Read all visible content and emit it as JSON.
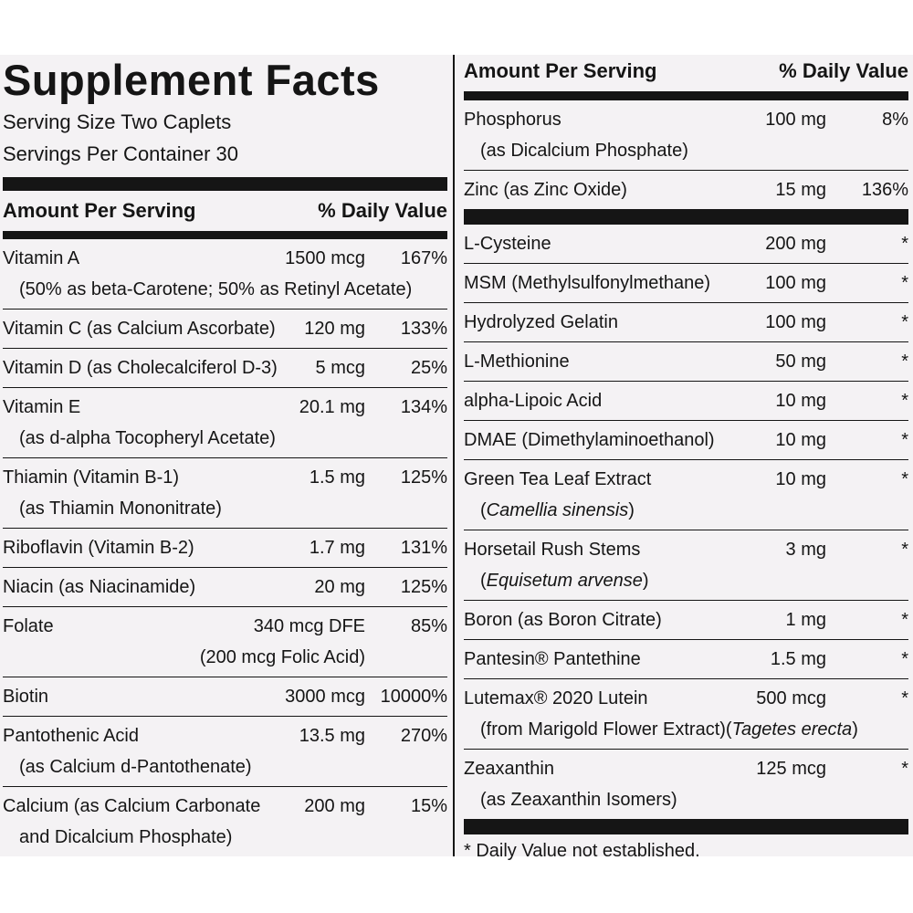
{
  "left": {
    "title": "Supplement Facts",
    "serving_size": "Serving Size Two Caplets",
    "servings_per_container": "Servings Per Container 30",
    "header": {
      "amount": "Amount Per Serving",
      "dv": "% Daily Value"
    },
    "rows": [
      {
        "name": "Vitamin A",
        "amount": "1500 mcg",
        "dv": "167%",
        "sub": [
          {
            "text": "(50% as beta-Carotene; 50% as Retinyl Acetate)"
          }
        ]
      },
      {
        "name": "Vitamin C (as Calcium Ascorbate)",
        "amount": "120 mg",
        "dv": "133%"
      },
      {
        "name": "Vitamin D (as Cholecalciferol D-3)",
        "amount": "5 mcg",
        "dv": "25%"
      },
      {
        "name": "Vitamin E",
        "amount": "20.1 mg",
        "dv": "134%",
        "sub": [
          {
            "text": "(as d-alpha Tocopheryl Acetate)"
          }
        ]
      },
      {
        "name": "Thiamin (Vitamin B-1)",
        "amount": "1.5 mg",
        "dv": "125%",
        "sub": [
          {
            "text": "(as Thiamin Mononitrate)"
          }
        ]
      },
      {
        "name": "Riboflavin (Vitamin B-2)",
        "amount": "1.7 mg",
        "dv": "131%"
      },
      {
        "name": "Niacin (as Niacinamide)",
        "amount": "20 mg",
        "dv": "125%"
      },
      {
        "name": "Folate",
        "amount": "340 mcg DFE",
        "dv": "85%",
        "sub": [
          {
            "text": "(200 mcg Folic Acid)"
          }
        ],
        "sub_align": "right"
      },
      {
        "name": "Biotin",
        "amount": "3000 mcg",
        "dv": "10000%"
      },
      {
        "name": "Pantothenic Acid",
        "amount": "13.5 mg",
        "dv": "270%",
        "sub": [
          {
            "text": "(as Calcium d-Pantothenate)"
          }
        ]
      },
      {
        "name": "Calcium (as Calcium Carbonate",
        "amount": "200 mg",
        "dv": "15%",
        "sub": [
          {
            "text": "and Dicalcium Phosphate)"
          }
        ]
      }
    ]
  },
  "right": {
    "header": {
      "amount": "Amount Per Serving",
      "dv": "% Daily Value"
    },
    "vitamin_rows": [
      {
        "name": "Phosphorus",
        "amount": "100 mg",
        "dv": "8%",
        "sub": [
          {
            "text": "(as Dicalcium Phosphate)"
          }
        ]
      },
      {
        "name": "Zinc (as Zinc Oxide)",
        "amount": "15 mg",
        "dv": "136%"
      }
    ],
    "other_rows": [
      {
        "name": "L-Cysteine",
        "amount": "200 mg",
        "dv": "*"
      },
      {
        "name": "MSM (Methylsulfonylmethane)",
        "amount": "100 mg",
        "dv": "*"
      },
      {
        "name": "Hydrolyzed Gelatin",
        "amount": "100 mg",
        "dv": "*"
      },
      {
        "name": "L-Methionine",
        "amount": "50 mg",
        "dv": "*"
      },
      {
        "name": "alpha-Lipoic Acid",
        "amount": "10 mg",
        "dv": "*"
      },
      {
        "name": "DMAE (Dimethylaminoethanol)",
        "amount": "10 mg",
        "dv": "*"
      },
      {
        "name": "Green Tea Leaf Extract",
        "amount": "10 mg",
        "dv": "*",
        "sub": [
          {
            "text": "("
          },
          {
            "text": "Camellia sinensis",
            "italic": true
          },
          {
            "text": ")"
          }
        ]
      },
      {
        "name": "Horsetail Rush Stems",
        "amount": "3 mg",
        "dv": "*",
        "sub": [
          {
            "text": "("
          },
          {
            "text": "Equisetum arvense",
            "italic": true
          },
          {
            "text": ")"
          }
        ]
      },
      {
        "name": "Boron (as Boron Citrate)",
        "amount": "1 mg",
        "dv": "*"
      },
      {
        "name": "Pantesin® Pantethine",
        "amount": "1.5 mg",
        "dv": "*"
      },
      {
        "name": "Lutemax® 2020 Lutein",
        "amount": "500 mcg",
        "dv": "*",
        "sub": [
          {
            "text": "(from Marigold Flower Extract)("
          },
          {
            "text": "Tagetes erecta",
            "italic": true
          },
          {
            "text": ")"
          }
        ]
      },
      {
        "name": "Zeaxanthin",
        "amount": "125 mcg",
        "dv": "*",
        "sub": [
          {
            "text": "(as Zeaxanthin Isomers)"
          }
        ]
      }
    ],
    "footnote": "* Daily Value not established."
  }
}
